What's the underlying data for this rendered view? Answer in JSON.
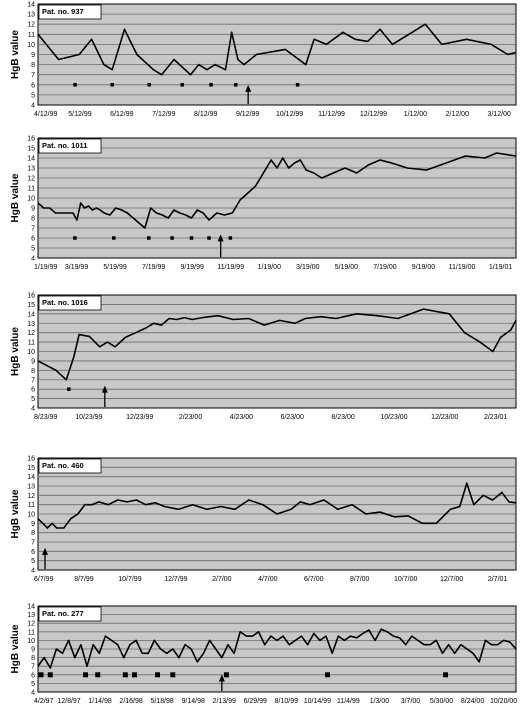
{
  "chart_data": [
    {
      "type": "line",
      "panel_label": "Pat. no. 937",
      "ylabel": "HgB value",
      "ylim": [
        4,
        14
      ],
      "yticks": [
        4,
        5,
        6,
        7,
        8,
        9,
        10,
        11,
        12,
        13,
        14
      ],
      "x_tick_labels": [
        "4/12/99",
        "5/12/99",
        "6/12/99",
        "7/12/99",
        "8/12/99",
        "9/12/99",
        "10/12/99",
        "11/12/99",
        "12/12/99",
        "1/12/00",
        "2/12/00",
        "3/12/00"
      ],
      "x_range": [
        0,
        11.6
      ],
      "series": [
        {
          "x": [
            0,
            0.5,
            1,
            1.3,
            1.6,
            1.8,
            2.1,
            2.4,
            2.8,
            3.0,
            3.3,
            3.7,
            3.9,
            4.1,
            4.3,
            4.55,
            4.7,
            4.85,
            5.0,
            5.3,
            6.0,
            6.5,
            6.7,
            7.0,
            7.4,
            7.7,
            8.0,
            8.3,
            8.6,
            9.0,
            9.4,
            9.8,
            10.4,
            11.0,
            11.4,
            11.6
          ],
          "y": [
            11,
            8.5,
            9,
            10.5,
            8,
            7.5,
            11.5,
            9,
            7.5,
            7,
            8.5,
            7.0,
            8.0,
            7.5,
            8,
            7.5,
            11.2,
            8.5,
            8,
            9,
            9.5,
            8,
            10.5,
            10,
            11.2,
            10.5,
            10.3,
            11.5,
            10,
            11,
            12,
            10,
            10.5,
            10,
            9,
            9.2
          ]
        }
      ],
      "markers": [
        0.9,
        1.8,
        2.7,
        3.5,
        4.2,
        4.8,
        6.3
      ],
      "arrows": [
        5.1
      ]
    },
    {
      "type": "line",
      "panel_label": "Pat. no. 1011",
      "ylabel": "HgB value",
      "ylim": [
        4,
        16
      ],
      "yticks": [
        4,
        5,
        6,
        7,
        8,
        9,
        10,
        11,
        12,
        13,
        14,
        15,
        16
      ],
      "x_tick_labels": [
        "1/19/99",
        "3/19/99",
        "5/19/99",
        "7/19/99",
        "9/19/99",
        "11/19/99",
        "1/19/00",
        "3/19/00",
        "5/19/00",
        "7/19/00",
        "9/19/00",
        "11/19/00",
        "1/19/01"
      ],
      "x_range": [
        0,
        12.3
      ],
      "series": [
        {
          "x": [
            0,
            0.15,
            0.3,
            0.45,
            0.6,
            0.8,
            0.9,
            1.0,
            1.1,
            1.2,
            1.3,
            1.4,
            1.5,
            1.6,
            1.7,
            1.85,
            2.0,
            2.15,
            2.3,
            2.45,
            2.6,
            2.75,
            2.9,
            3.05,
            3.2,
            3.35,
            3.5,
            3.65,
            3.8,
            3.95,
            4.1,
            4.25,
            4.4,
            4.6,
            4.8,
            5.0,
            5.2,
            5.4,
            5.6,
            5.8,
            6.0,
            6.15,
            6.3,
            6.45,
            6.6,
            6.75,
            6.9,
            7.1,
            7.3,
            7.6,
            7.9,
            8.2,
            8.5,
            8.8,
            9.1,
            9.5,
            10.0,
            11.0,
            11.5,
            11.8,
            12.3
          ],
          "y": [
            9.5,
            9,
            9,
            8.5,
            8.5,
            8.5,
            8.5,
            7.8,
            9.5,
            9,
            9.2,
            8.8,
            9,
            8.8,
            8.5,
            8.3,
            9,
            8.8,
            8.5,
            8,
            7.5,
            7.0,
            9,
            8.5,
            8.3,
            8,
            8.8,
            8.5,
            8.3,
            8,
            8.8,
            8.5,
            7.8,
            8.5,
            8.3,
            8.5,
            9.8,
            10.5,
            11.2,
            12.5,
            13.8,
            13,
            14,
            13,
            13.5,
            13.8,
            12.8,
            12.5,
            12,
            12.5,
            13,
            12.5,
            13.3,
            13.8,
            13.5,
            13,
            12.8,
            14.2,
            14,
            14.5,
            14.2
          ]
        }
      ],
      "markers": [
        0.95,
        1.95,
        2.85,
        3.45,
        3.95,
        4.4,
        4.95
      ],
      "arrows": [
        4.7
      ]
    },
    {
      "type": "line",
      "panel_label": "Pat. no. 1016",
      "ylabel": "HgB value",
      "ylim": [
        4,
        16
      ],
      "yticks": [
        4,
        5,
        6,
        7,
        8,
        9,
        10,
        11,
        12,
        13,
        14,
        15,
        16
      ],
      "x_tick_labels": [
        "8/23/99",
        "10/23/99",
        "12/23/99",
        "2/23/00",
        "4/23/00",
        "6/23/00",
        "8/23/00",
        "10/23/00",
        "12/23/00",
        "2/23/01"
      ],
      "x_range": [
        0,
        9.3
      ],
      "series": [
        {
          "x": [
            0,
            0.35,
            0.55,
            0.7,
            0.8,
            1.0,
            1.2,
            1.35,
            1.5,
            1.7,
            1.9,
            2.1,
            2.25,
            2.4,
            2.55,
            2.7,
            2.85,
            3.0,
            3.2,
            3.5,
            3.8,
            4.1,
            4.4,
            4.7,
            5.0,
            5.2,
            5.5,
            5.8,
            6.2,
            6.6,
            7.0,
            7.5,
            8.0,
            8.3,
            8.6,
            8.85,
            9.0,
            9.2,
            9.3
          ],
          "y": [
            9,
            8,
            7,
            9.5,
            11.8,
            11.6,
            10.5,
            11,
            10.5,
            11.5,
            12,
            12.5,
            13,
            12.8,
            13.5,
            13.4,
            13.6,
            13.4,
            13.6,
            13.8,
            13.4,
            13.5,
            12.8,
            13.3,
            13,
            13.5,
            13.7,
            13.5,
            14,
            13.8,
            13.5,
            14.5,
            14,
            12,
            11,
            10,
            11.5,
            12.3,
            13.3
          ]
        }
      ],
      "markers": [
        0.6
      ],
      "arrows": [
        1.3
      ]
    },
    {
      "type": "line",
      "panel_label": "Pat. no. 460",
      "ylabel": "HgB value",
      "ylim": [
        4,
        16
      ],
      "yticks": [
        4,
        5,
        6,
        7,
        8,
        9,
        10,
        11,
        12,
        13,
        14,
        15,
        16
      ],
      "x_tick_labels": [
        "6/7/99",
        "8/7/99",
        "10/7/99",
        "12/7/99",
        "2/7/00",
        "4/7/00",
        "6/7/00",
        "8/7/00",
        "10/7/00",
        "12/7/00",
        "2/7/01"
      ],
      "x_range": [
        0,
        10.2
      ],
      "series": [
        {
          "x": [
            0,
            0.1,
            0.2,
            0.3,
            0.4,
            0.55,
            0.7,
            0.85,
            1.0,
            1.15,
            1.3,
            1.5,
            1.7,
            1.9,
            2.1,
            2.3,
            2.5,
            2.7,
            3.0,
            3.3,
            3.6,
            3.9,
            4.2,
            4.5,
            4.8,
            5.1,
            5.4,
            5.6,
            5.8,
            6.1,
            6.4,
            6.7,
            7.0,
            7.3,
            7.6,
            7.9,
            8.2,
            8.5,
            8.8,
            9.0,
            9.15,
            9.3,
            9.5,
            9.7,
            9.9,
            10.05,
            10.2
          ],
          "y": [
            9.5,
            9,
            8.5,
            9,
            8.5,
            8.5,
            9.5,
            10,
            11,
            11,
            11.3,
            11,
            11.5,
            11.3,
            11.5,
            11,
            11.2,
            10.8,
            10.5,
            11,
            10.5,
            10.8,
            10.5,
            11.5,
            11,
            10,
            10.5,
            11.3,
            11,
            11.5,
            10.5,
            11,
            10,
            10.2,
            9.7,
            9.8,
            9,
            9,
            10.5,
            10.8,
            13.3,
            11,
            12,
            11.5,
            12.3,
            11.3,
            11.2
          ]
        }
      ],
      "markers": [],
      "arrows": [
        0.15
      ]
    },
    {
      "type": "line",
      "panel_label": "Pat. no. 277",
      "ylabel": "HgB value",
      "ylim": [
        4,
        14
      ],
      "yticks": [
        4,
        5,
        6,
        7,
        8,
        9,
        10,
        11,
        12,
        13,
        14
      ],
      "x_tick_labels": [
        "4/2/97",
        "12/8/97",
        "1/14/98",
        "2/16/98",
        "5/18/98",
        "9/14/98",
        "2/13/99",
        "6/29/99",
        "8/10/99",
        "10/14/99",
        "11/4/99",
        "1/3/00",
        "3/7/00",
        "5/30/00",
        "8/24/00",
        "10/20/00"
      ],
      "x_range": [
        0,
        15.6
      ],
      "series": [
        {
          "x": [
            0,
            0.2,
            0.4,
            0.6,
            0.8,
            1.0,
            1.2,
            1.4,
            1.6,
            1.8,
            2.0,
            2.2,
            2.4,
            2.6,
            2.8,
            3.0,
            3.2,
            3.4,
            3.6,
            3.8,
            4.0,
            4.2,
            4.4,
            4.6,
            4.8,
            5.0,
            5.2,
            5.4,
            5.6,
            5.8,
            6.0,
            6.2,
            6.4,
            6.6,
            6.8,
            7.0,
            7.2,
            7.4,
            7.6,
            7.8,
            8.0,
            8.2,
            8.4,
            8.6,
            8.8,
            9.0,
            9.2,
            9.4,
            9.6,
            9.8,
            10.0,
            10.2,
            10.4,
            10.6,
            10.8,
            11.0,
            11.2,
            11.4,
            11.6,
            11.8,
            12.0,
            12.2,
            12.4,
            12.6,
            12.8,
            13.0,
            13.2,
            13.4,
            13.6,
            13.8,
            14.0,
            14.2,
            14.4,
            14.6,
            14.8,
            15.0,
            15.2,
            15.4,
            15.6
          ],
          "y": [
            7,
            8,
            6.8,
            9,
            8.5,
            10,
            8,
            9.5,
            7,
            9.5,
            8.5,
            10.5,
            10,
            9.5,
            8,
            9.5,
            10,
            8.5,
            8.5,
            10,
            9,
            8.5,
            9,
            8,
            9.5,
            9,
            7.5,
            8.5,
            10,
            9,
            8,
            9.5,
            8.5,
            11,
            10.5,
            10.5,
            11,
            9.5,
            10.5,
            10,
            10.5,
            9.5,
            10,
            10.5,
            9.5,
            10.8,
            10,
            10.5,
            8.5,
            10.5,
            10,
            10.5,
            10.3,
            10.8,
            11.2,
            10,
            11.3,
            11,
            10.5,
            10.3,
            9.5,
            10.5,
            10,
            9.5,
            9.5,
            10,
            8.5,
            9.5,
            8.5,
            9.5,
            9,
            8.5,
            7.5,
            10,
            9.5,
            9.5,
            10,
            9.8,
            9
          ]
        }
      ],
      "markers": [
        0.1,
        0.4,
        1.55,
        1.95,
        2.85,
        3.15,
        3.9,
        4.4,
        6.15,
        9.45,
        13.3
      ],
      "arrows": [
        6.0
      ]
    }
  ]
}
